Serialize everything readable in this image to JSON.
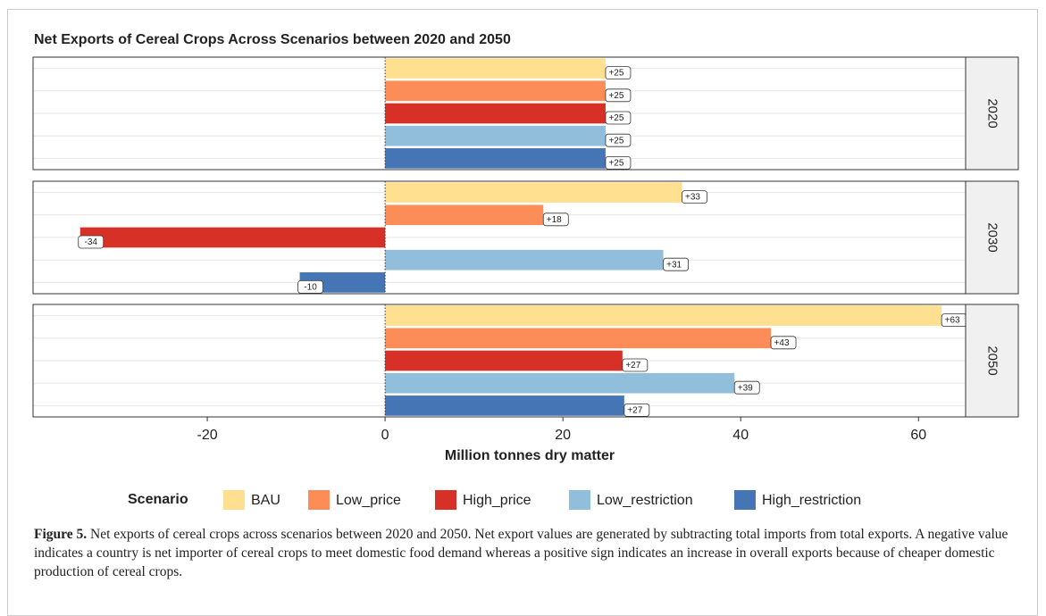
{
  "chart_data": {
    "type": "bar",
    "orientation": "horizontal",
    "title": "Net Exports of Cereal Crops Across Scenarios between 2020 and 2050",
    "xlabel": "Million tonnes dry matter",
    "facets": [
      "2020",
      "2030",
      "2050"
    ],
    "legend_title": "Scenario",
    "series": [
      {
        "name": "BAU",
        "color": "#fee090",
        "values": [
          24.8,
          33.4,
          62.6
        ],
        "value_labels": [
          "+25",
          "+33",
          "+63"
        ]
      },
      {
        "name": "Low_price",
        "color": "#fc8d59",
        "values": [
          24.8,
          17.8,
          43.4
        ],
        "value_labels": [
          "+25",
          "+18",
          "+43"
        ]
      },
      {
        "name": "High_price",
        "color": "#d73027",
        "values": [
          24.8,
          -34.3,
          26.7
        ],
        "value_labels": [
          "+25",
          "-34",
          "+27"
        ]
      },
      {
        "name": "Low_restriction",
        "color": "#91bfdb",
        "values": [
          24.8,
          31.3,
          39.3
        ],
        "value_labels": [
          "+25",
          "+31",
          "+39"
        ]
      },
      {
        "name": "High_restriction",
        "color": "#4575b4",
        "values": [
          24.8,
          -9.6,
          26.9
        ],
        "value_labels": [
          "+25",
          "-10",
          "+27"
        ]
      }
    ],
    "xlim": [
      -39.6,
      65.3
    ],
    "xticks": [
      -20,
      0,
      20,
      40,
      60
    ],
    "grid": true
  },
  "figure_caption": {
    "label": "Figure 5.",
    "text": "Net exports of cereal crops across scenarios between 2020 and 2050. Net export values are generated by subtracting total imports from total exports. A negative value indicates a country is net importer of cereal crops to meet domestic food demand whereas a positive sign indicates an increase in overall exports because of cheaper domestic production of cereal crops."
  }
}
